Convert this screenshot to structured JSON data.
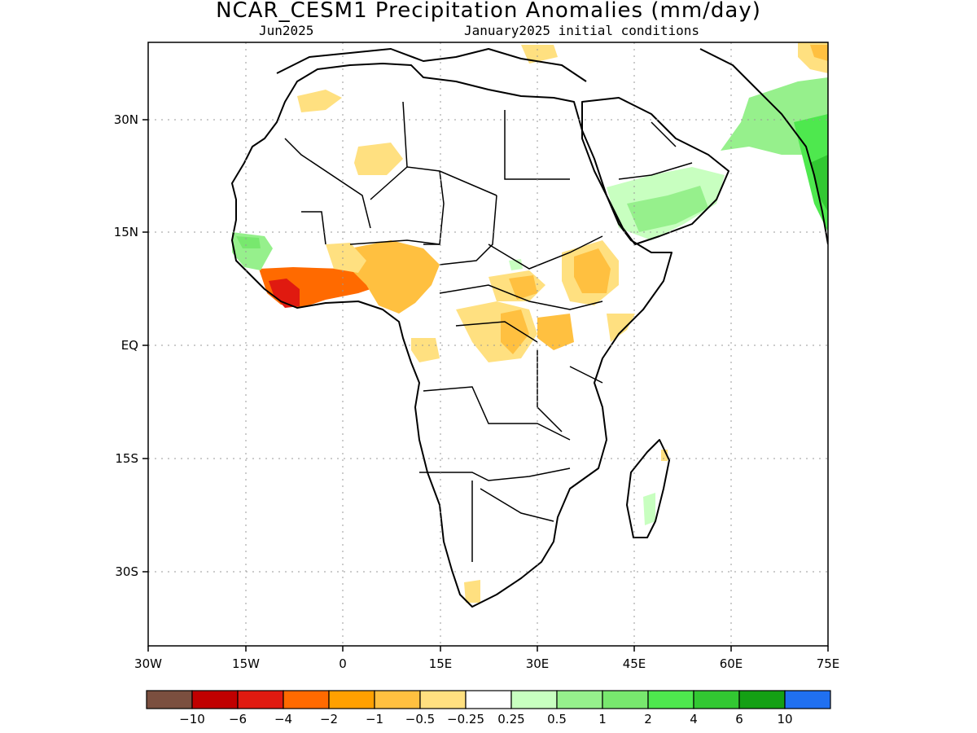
{
  "header": {
    "title": "NCAR_CESM1 Precipitation Anomalies (mm/day)",
    "target_month": "Jun2025",
    "init": "January2025 initial conditions"
  },
  "map": {
    "lon_range": [
      -30,
      75
    ],
    "lat_range": [
      -40,
      40
    ],
    "lon_ticks": [
      "30W",
      "15W",
      "0",
      "15E",
      "30E",
      "45E",
      "60E",
      "75E"
    ],
    "lat_ticks": [
      "30N",
      "15N",
      "EQ",
      "15S",
      "30S"
    ]
  },
  "colorbar": {
    "colors": [
      "#7b4f3f",
      "#c00000",
      "#e01a10",
      "#ff6a00",
      "#ffa000",
      "#ffc040",
      "#ffe080",
      "#ffffff",
      "#c8ffc0",
      "#96f08c",
      "#78e86e",
      "#4ee84e",
      "#32c832",
      "#14a014",
      "#2070f0"
    ],
    "labels": [
      "−10",
      "−6",
      "−4",
      "−2",
      "−1",
      "−0.5",
      "−0.25",
      "0.25",
      "0.5",
      "1",
      "2",
      "4",
      "6",
      "10"
    ]
  }
}
